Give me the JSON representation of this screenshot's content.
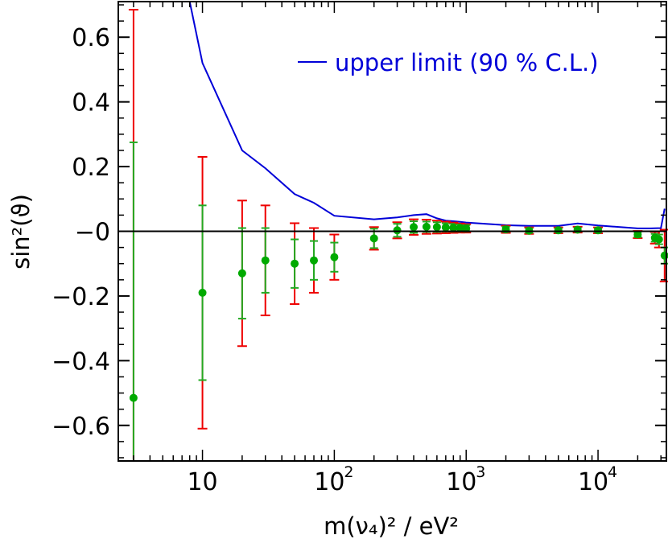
{
  "chart_data": {
    "type": "scatter",
    "title": "",
    "xlabel": "m(ν₄)² / eV²",
    "ylabel": "sin²(ϑ)",
    "xscale": "log",
    "xlim": [
      2.3,
      33000
    ],
    "ylim": [
      -0.71,
      0.71
    ],
    "grid": false,
    "legend_position": "top-right",
    "x_ticks": [
      {
        "value": 10,
        "label": "10",
        "exp": ""
      },
      {
        "value": 100,
        "label": "10",
        "exp": "2"
      },
      {
        "value": 1000,
        "label": "10",
        "exp": "3"
      },
      {
        "value": 10000,
        "label": "10",
        "exp": "4"
      }
    ],
    "y_ticks": [
      {
        "value": 0.6,
        "label": "0.6"
      },
      {
        "value": 0.4,
        "label": "0.4"
      },
      {
        "value": 0.2,
        "label": "0.2"
      },
      {
        "value": 0.0,
        "label": "−0"
      },
      {
        "value": -0.2,
        "label": "−0.2"
      },
      {
        "value": -0.4,
        "label": "−0.4"
      },
      {
        "value": -0.6,
        "label": "−0.6"
      }
    ],
    "colors": {
      "limit": "#0000d8",
      "points": "#00aa00",
      "stat_error": "#22aa22",
      "total_error": "#ee0000",
      "axes": "#000000"
    },
    "series": [
      {
        "name": "upper limit (90 % C.L.)",
        "type": "line",
        "x": [
          8,
          10,
          20,
          30,
          50,
          70,
          100,
          200,
          300,
          400,
          500,
          600,
          700,
          800,
          900,
          1000,
          2000,
          3000,
          5000,
          7000,
          10000,
          20000,
          25000,
          30000,
          32000
        ],
        "y": [
          0.71,
          0.52,
          0.25,
          0.195,
          0.115,
          0.088,
          0.048,
          0.037,
          0.043,
          0.05,
          0.053,
          0.04,
          0.033,
          0.031,
          0.029,
          0.027,
          0.019,
          0.017,
          0.017,
          0.024,
          0.018,
          0.009,
          0.009,
          0.01,
          0.07
        ]
      },
      {
        "type": "errorbar",
        "x": [
          3,
          10,
          20,
          30,
          50,
          70,
          100,
          200,
          300,
          400,
          500,
          600,
          700,
          800,
          900,
          1000,
          2000,
          3000,
          5000,
          7000,
          10000,
          20000,
          27000,
          29000,
          32000
        ],
        "y": [
          -0.515,
          -0.19,
          -0.13,
          -0.09,
          -0.1,
          -0.09,
          -0.08,
          -0.022,
          0.003,
          0.013,
          0.014,
          0.013,
          0.012,
          0.011,
          0.01,
          0.009,
          0.006,
          0.002,
          0.003,
          0.005,
          0.003,
          -0.01,
          -0.02,
          -0.025,
          -0.075
        ],
        "stat_err": [
          0.79,
          0.27,
          0.14,
          0.1,
          0.075,
          0.06,
          0.045,
          0.03,
          0.02,
          0.018,
          0.016,
          0.015,
          0.013,
          0.012,
          0.011,
          0.01,
          0.008,
          0.007,
          0.006,
          0.006,
          0.006,
          0.008,
          0.012,
          0.015,
          0.025
        ],
        "total_err": [
          1.2,
          0.42,
          0.225,
          0.17,
          0.125,
          0.1,
          0.07,
          0.035,
          0.025,
          0.024,
          0.022,
          0.02,
          0.018,
          0.016,
          0.014,
          0.013,
          0.011,
          0.01,
          0.009,
          0.009,
          0.009,
          0.011,
          0.018,
          0.025,
          0.08
        ]
      }
    ]
  }
}
